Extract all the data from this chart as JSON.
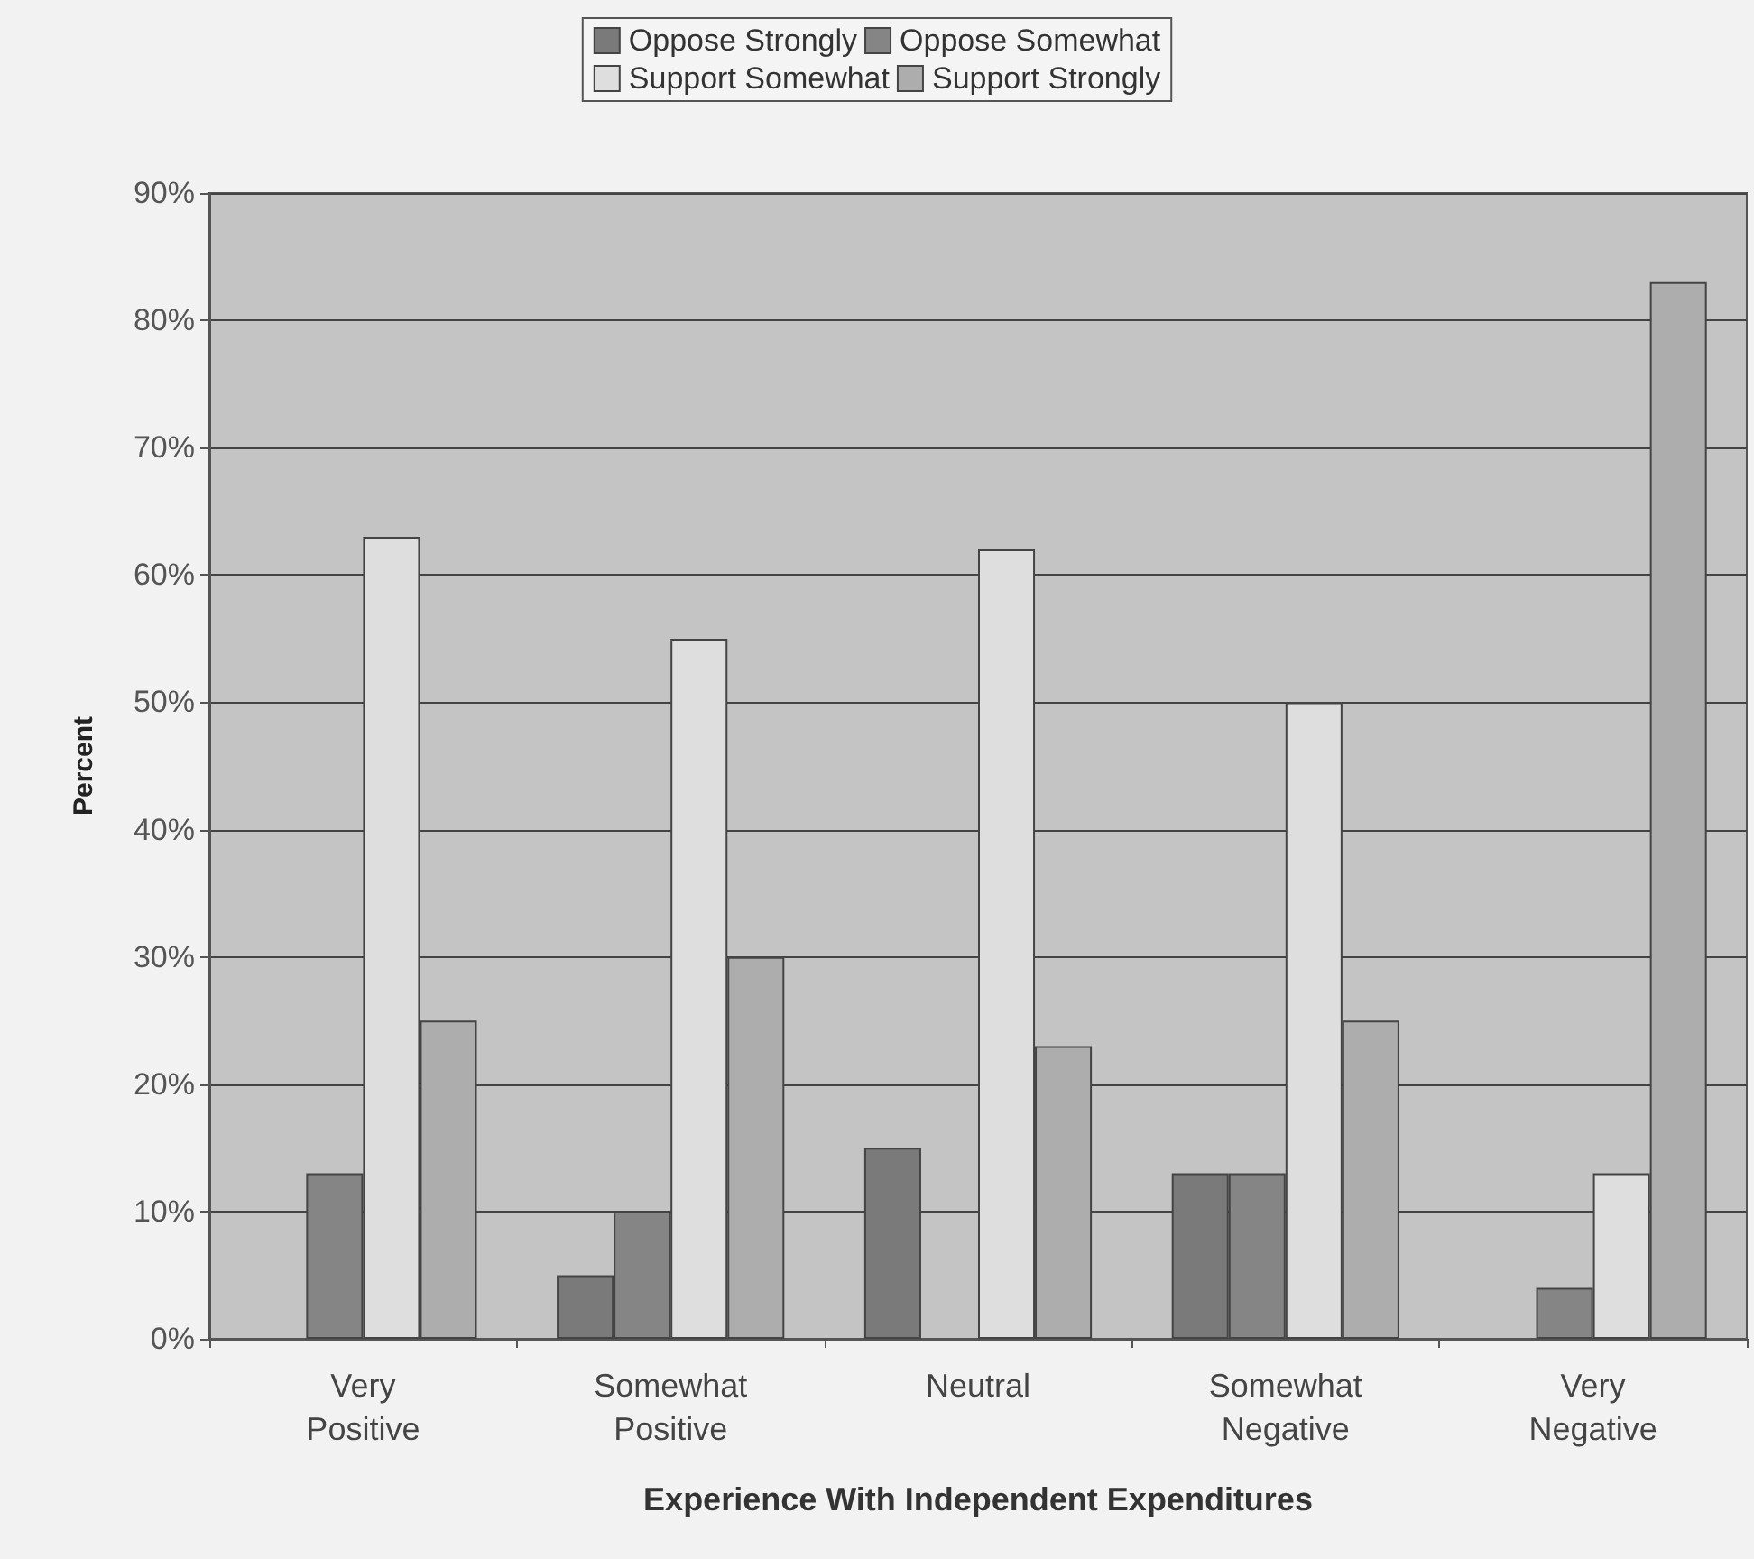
{
  "chart_data": {
    "type": "bar",
    "xlabel": "Experience With Independent Expenditures",
    "ylabel": "Percent",
    "categories": [
      "Very\nPositive",
      "Somewhat\nPositive",
      "Neutral",
      "Somewhat\nNegative",
      "Very\nNegative"
    ],
    "series": [
      {
        "name": "Oppose Strongly",
        "color": "#7a7a7a",
        "values": [
          null,
          5,
          15,
          13,
          null
        ]
      },
      {
        "name": "Oppose Somewhat",
        "color": "#858585",
        "values": [
          13,
          10,
          null,
          13,
          4
        ]
      },
      {
        "name": "Support Somewhat",
        "color": "#dedede",
        "values": [
          63,
          55,
          62,
          50,
          13
        ]
      },
      {
        "name": "Support Strongly",
        "color": "#adadad",
        "values": [
          25,
          30,
          23,
          25,
          83
        ]
      }
    ],
    "ylim": [
      0,
      90
    ],
    "yticks": [
      {
        "value": 0,
        "label": "0%"
      },
      {
        "value": 10,
        "label": "10%"
      },
      {
        "value": 20,
        "label": "20%"
      },
      {
        "value": 30,
        "label": "30%"
      },
      {
        "value": 40,
        "label": "40%"
      },
      {
        "value": 50,
        "label": "50%"
      },
      {
        "value": 60,
        "label": "60%"
      },
      {
        "value": 70,
        "label": "70%"
      },
      {
        "value": 80,
        "label": "80%"
      },
      {
        "value": 90,
        "label": "90%"
      }
    ],
    "grid": "y",
    "legend": "top"
  }
}
